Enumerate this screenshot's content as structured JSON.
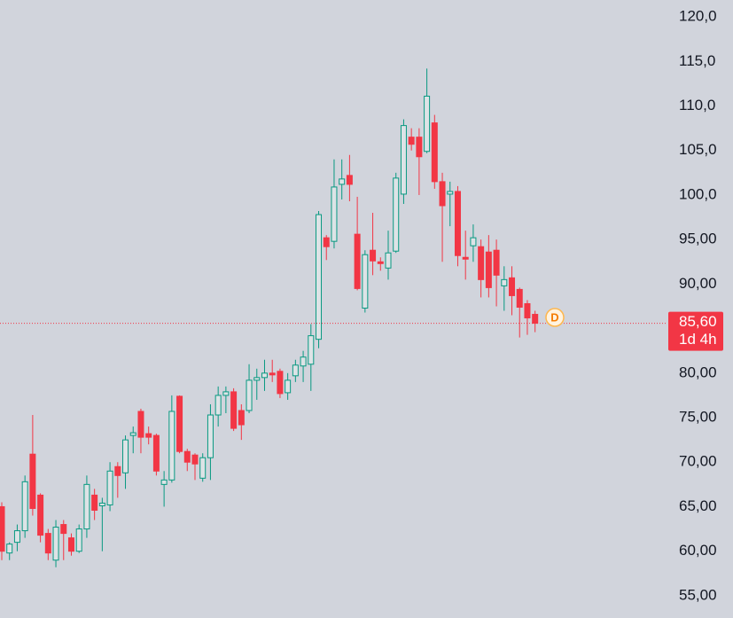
{
  "chart_data": {
    "type": "candlestick",
    "up_color": "#089981",
    "down_color": "#f23645",
    "ylim": [
      52.5,
      121.9
    ],
    "yticks": [
      {
        "value": 120,
        "label": "120,0"
      },
      {
        "value": 115,
        "label": "115,0"
      },
      {
        "value": 110,
        "label": "110,0"
      },
      {
        "value": 105,
        "label": "105,0"
      },
      {
        "value": 100,
        "label": "100,0"
      },
      {
        "value": 95,
        "label": "95,00"
      },
      {
        "value": 90,
        "label": "90,00"
      },
      {
        "value": 80,
        "label": "80,00"
      },
      {
        "value": 75,
        "label": "75,00"
      },
      {
        "value": 70,
        "label": "70,00"
      },
      {
        "value": 65,
        "label": "65,00"
      },
      {
        "value": 60,
        "label": "60,00"
      },
      {
        "value": 55,
        "label": "55,00"
      }
    ],
    "open": [
      65,
      59.8,
      61,
      62.3,
      70.9,
      66.3,
      62,
      59,
      63,
      61.5,
      60,
      62.5,
      66.3,
      65.1,
      65.2,
      69.5,
      68.8,
      73,
      75.7,
      73.2,
      73,
      67.5,
      68,
      77.4,
      71.2,
      70.8,
      68.2,
      70.5,
      75.3,
      77.5,
      77.9,
      75.8,
      75.8,
      79.2,
      79.5,
      80,
      80.2,
      77.8,
      79.7,
      80.8,
      81,
      83.8,
      95.2,
      94.8,
      101.2,
      102.2,
      95.6,
      87.3,
      93.8,
      92.5,
      91.8,
      93.7,
      100.1,
      106.5,
      106.5,
      104.9,
      108.1,
      101.5,
      100.1,
      100.4,
      93,
      94.3,
      94.2,
      93.6,
      93.8,
      89.8,
      90.7,
      89.4,
      87.8,
      86.6
    ],
    "high": [
      65.5,
      61,
      63,
      68.5,
      75.3,
      66.5,
      62.5,
      63.5,
      63.5,
      62,
      63,
      68.5,
      67,
      66,
      70,
      70,
      73,
      74,
      76,
      74,
      73.2,
      69,
      77.5,
      77.5,
      71.5,
      71,
      71,
      76.5,
      78.5,
      78.5,
      78.3,
      76.5,
      81,
      80.5,
      81.5,
      81.5,
      80.5,
      80,
      81.5,
      82.5,
      85.5,
      98.2,
      95.5,
      104,
      104,
      104.5,
      99.8,
      93.8,
      98,
      93,
      96,
      102.5,
      108.5,
      107.5,
      107.5,
      114.2,
      109,
      102.5,
      101.5,
      101,
      96,
      96.7,
      95,
      95.5,
      95,
      92,
      92,
      89.6,
      88.2,
      87
    ],
    "low": [
      59,
      59,
      60,
      61.5,
      64,
      61,
      59,
      58.2,
      59,
      59.5,
      59.8,
      61.5,
      63.5,
      60,
      64.5,
      66,
      67,
      71,
      71,
      72,
      68.5,
      65,
      67.7,
      71,
      69,
      68,
      67.8,
      68,
      74,
      75.5,
      73.5,
      72.5,
      75.5,
      77,
      78,
      79,
      77.2,
      77,
      79,
      79,
      78,
      82.8,
      92.7,
      94,
      99.5,
      99.3,
      89.3,
      86.8,
      91,
      91.5,
      90.5,
      93.5,
      99,
      105,
      100,
      104.7,
      100.7,
      92.5,
      96.5,
      92,
      90.5,
      92.5,
      88.5,
      88.5,
      87.5,
      87,
      86.5,
      84,
      84.3,
      84.6
    ],
    "close": [
      60,
      60.8,
      62.3,
      67.8,
      64.8,
      61.8,
      59.8,
      62.7,
      62,
      60,
      62.5,
      67.5,
      64.6,
      65.4,
      69,
      68.5,
      72.5,
      73.3,
      72.8,
      72.8,
      69,
      68,
      75.7,
      71.2,
      70,
      69.8,
      70.5,
      75.3,
      77.5,
      77.9,
      73.8,
      74.2,
      79.2,
      79.5,
      80,
      79.8,
      77.7,
      79.2,
      80.9,
      81.8,
      84.2,
      97.8,
      94.2,
      100.9,
      101.8,
      101.2,
      89.5,
      93.3,
      92.6,
      92.3,
      93.5,
      101.9,
      107.8,
      105.7,
      104.3,
      111.1,
      101.5,
      98.8,
      100.4,
      93.2,
      92.8,
      95.2,
      90.5,
      89.6,
      91,
      90.5,
      88.7,
      87.4,
      86.2,
      85.6
    ],
    "last_price": {
      "value": 85.6,
      "label": "85,60"
    },
    "countdown": "1d 4h",
    "marker": "D"
  }
}
